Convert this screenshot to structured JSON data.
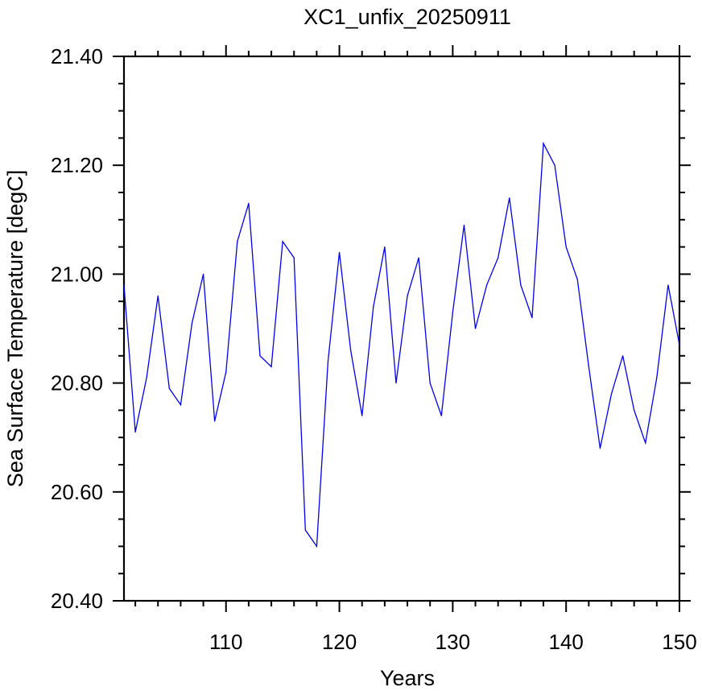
{
  "chart_data": {
    "type": "line",
    "title": "XC1_unfix_20250911",
    "xlabel": "Years",
    "ylabel": "Sea Surface Temperature [degC]",
    "xlim": [
      101,
      150
    ],
    "ylim": [
      20.4,
      21.4
    ],
    "x_major_ticks": [
      110,
      120,
      130,
      140,
      150
    ],
    "x_tick_labels": [
      "110",
      "120",
      "130",
      "140",
      "150"
    ],
    "y_major_ticks": [
      20.4,
      20.6,
      20.8,
      21.0,
      21.2,
      21.4
    ],
    "y_tick_labels": [
      "20.40",
      "20.60",
      "20.80",
      "21.00",
      "21.20",
      "21.40"
    ],
    "grid": false,
    "line_color": "#0000ee",
    "series": [
      {
        "x": [
          101,
          102,
          103,
          104,
          105,
          106,
          107,
          108,
          109,
          110,
          111,
          112,
          113,
          114,
          115,
          116,
          117,
          118,
          119,
          120,
          121,
          122,
          123,
          124,
          125,
          126,
          127,
          128,
          129,
          130,
          131,
          132,
          133,
          134,
          135,
          136,
          137,
          138,
          139,
          140,
          141,
          142,
          143,
          144,
          145,
          146,
          147,
          148,
          149,
          150
        ],
        "values": [
          20.98,
          20.71,
          20.81,
          20.96,
          20.79,
          20.76,
          20.91,
          21.0,
          20.73,
          20.82,
          21.06,
          21.13,
          20.85,
          20.83,
          21.06,
          21.03,
          20.53,
          20.5,
          20.84,
          21.04,
          20.86,
          20.74,
          20.94,
          21.05,
          20.8,
          20.96,
          21.03,
          20.8,
          20.74,
          20.93,
          21.09,
          20.9,
          20.98,
          21.03,
          21.14,
          20.98,
          20.92,
          21.24,
          21.2,
          21.05,
          20.99,
          20.83,
          20.68,
          20.78,
          20.85,
          20.75,
          20.69,
          20.81,
          20.98,
          20.87
        ]
      }
    ]
  }
}
